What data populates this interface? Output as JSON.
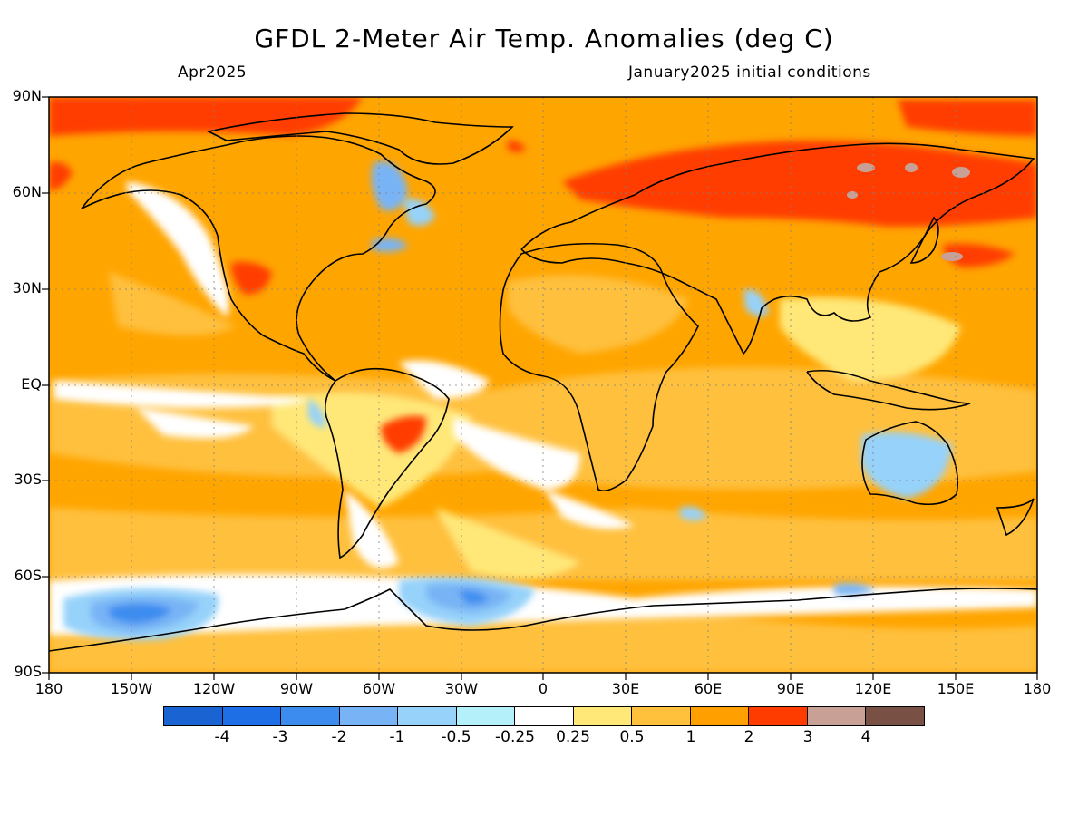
{
  "title": "GFDL 2-Meter Air Temp. Anomalies (deg C)",
  "subtitle_left": "Apr2025",
  "subtitle_right": "January2025 initial conditions",
  "map": {
    "lat_labels": [
      "90N",
      "60N",
      "30N",
      "EQ",
      "30S",
      "60S",
      "90S"
    ],
    "lon_labels": [
      "180",
      "150W",
      "120W",
      "90W",
      "60W",
      "30W",
      "0",
      "30E",
      "60E",
      "90E",
      "120E",
      "150E",
      "180"
    ],
    "background_color": "#ffa500"
  },
  "legend": {
    "colors": [
      "#1964d2",
      "#1e6ee6",
      "#3c8cf0",
      "#78b4f5",
      "#96d2fa",
      "#b4f0fa",
      "#ffffff",
      "#ffe878",
      "#ffc03c",
      "#ffa000",
      "#ff3c00",
      "#c8a096",
      "#785044"
    ],
    "labels": [
      "-4",
      "-3",
      "-2",
      "-1",
      "-0.5",
      "-0.25",
      "0.25",
      "0.5",
      "1",
      "2",
      "3",
      "4"
    ]
  }
}
